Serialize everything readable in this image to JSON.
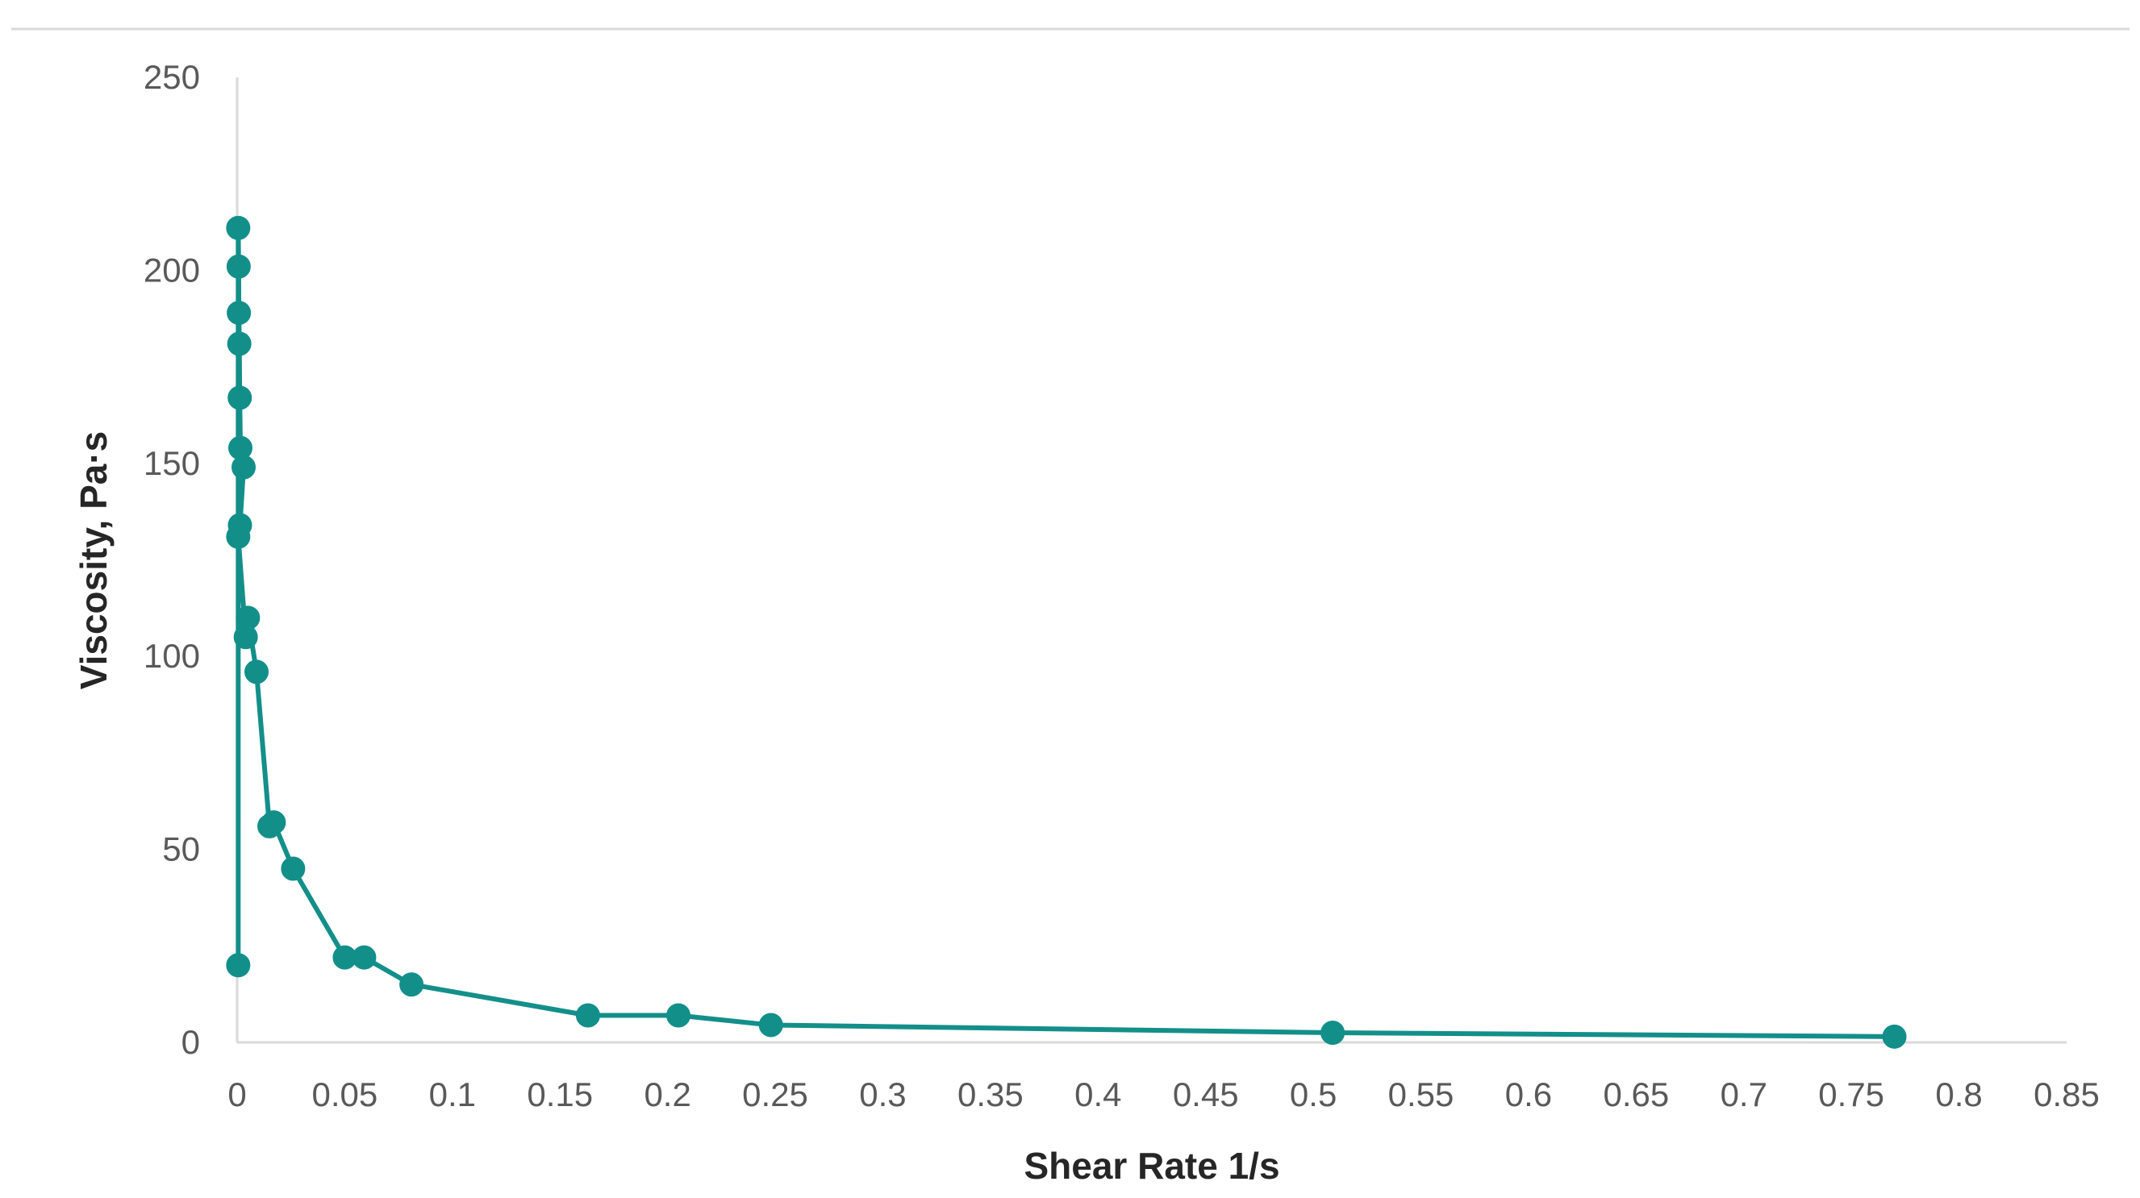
{
  "chart_data": {
    "type": "line",
    "title": "",
    "xlabel": "Shear Rate 1/s",
    "ylabel": "Viscosity, Pa·s",
    "xlim": [
      0,
      0.85
    ],
    "ylim": [
      0,
      250
    ],
    "x_ticks": [
      "0",
      "0.05",
      "0.1",
      "0.15",
      "0.2",
      "0.25",
      "0.3",
      "0.35",
      "0.4",
      "0.45",
      "0.5",
      "0.55",
      "0.6",
      "0.65",
      "0.7",
      "0.75",
      "0.8",
      "0.85"
    ],
    "y_ticks": [
      "0",
      "50",
      "100",
      "150",
      "200",
      "250"
    ],
    "grid": false,
    "legend": "none",
    "series_color": "#138F8A",
    "series": [
      {
        "x": [
          0.0005,
          0.0005,
          0.0007,
          0.0008,
          0.001,
          0.0012,
          0.0015,
          0.0013,
          0.003,
          0.0005,
          0.004,
          0.005,
          0.009,
          0.015,
          0.017,
          0.026,
          0.05,
          0.059,
          0.081,
          0.163,
          0.205,
          0.248,
          0.509,
          0.77
        ],
        "y": [
          20,
          211,
          201,
          189,
          181,
          167,
          154,
          134,
          149,
          131,
          105,
          110,
          96,
          56,
          57,
          45,
          22,
          22,
          15,
          7,
          7,
          4.5,
          2.5,
          1.5
        ]
      }
    ]
  }
}
